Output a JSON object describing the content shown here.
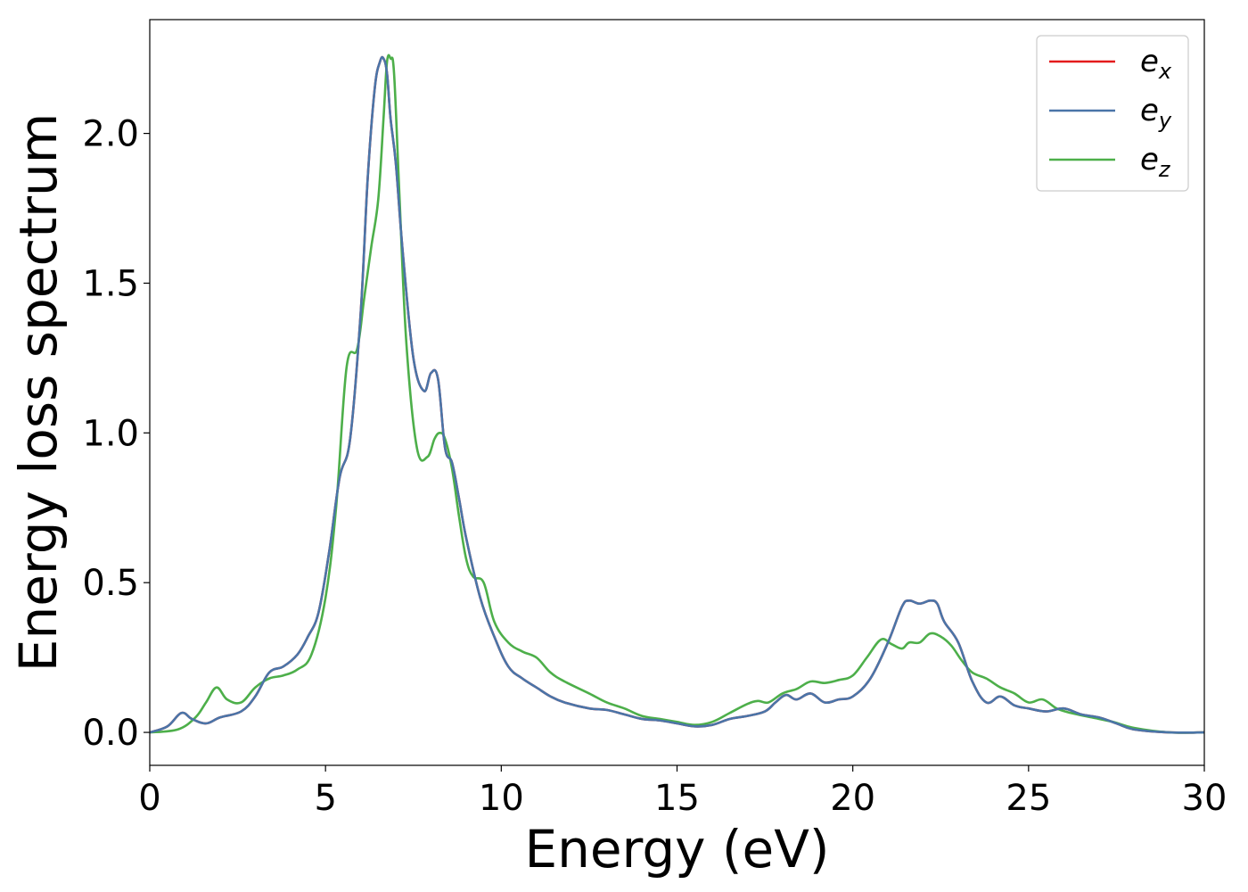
{
  "chart_data": {
    "type": "line",
    "title": "",
    "xlabel": "Energy (eV)",
    "ylabel": "Energy loss spectrum",
    "xlim": [
      0,
      30
    ],
    "ylim": [
      -0.11,
      2.38
    ],
    "xticks": [
      0,
      5,
      10,
      15,
      20,
      25,
      30
    ],
    "xtick_labels": [
      "0",
      "5",
      "10",
      "15",
      "20",
      "25",
      "30"
    ],
    "yticks": [
      0.0,
      0.5,
      1.0,
      1.5,
      2.0
    ],
    "ytick_labels": [
      "0.0",
      "0.5",
      "1.0",
      "1.5",
      "2.0"
    ],
    "grid": false,
    "legend_position": "top-right",
    "series": [
      {
        "name": "e_x",
        "legend_base": "e",
        "legend_sub": "x",
        "color": "#e41a1c",
        "x": [
          0,
          0.5,
          0.9,
          1.2,
          1.6,
          2.0,
          2.6,
          3.0,
          3.4,
          3.8,
          4.2,
          4.5,
          4.8,
          5.1,
          5.4,
          5.7,
          6.0,
          6.2,
          6.4,
          6.55,
          6.65,
          6.75,
          6.85,
          7.0,
          7.2,
          7.5,
          7.8,
          8.0,
          8.2,
          8.4,
          8.6,
          8.8,
          9.0,
          9.4,
          9.8,
          10.2,
          10.6,
          11.0,
          11.4,
          11.8,
          12.5,
          13.0,
          13.5,
          14.0,
          14.5,
          15.0,
          15.5,
          16.0,
          16.5,
          17.0,
          17.5,
          17.8,
          18.1,
          18.4,
          18.8,
          19.2,
          19.6,
          20.0,
          20.5,
          21.0,
          21.4,
          21.6,
          21.9,
          22.2,
          22.4,
          22.6,
          23.0,
          23.4,
          23.8,
          24.2,
          24.6,
          25.0,
          25.5,
          26.0,
          26.5,
          27.0,
          27.5,
          28.0,
          29.0,
          30.0
        ],
        "y": [
          0.0,
          0.02,
          0.065,
          0.045,
          0.03,
          0.05,
          0.07,
          0.12,
          0.2,
          0.22,
          0.26,
          0.32,
          0.4,
          0.6,
          0.85,
          0.98,
          1.4,
          1.85,
          2.15,
          2.24,
          2.25,
          2.2,
          2.05,
          1.9,
          1.6,
          1.25,
          1.14,
          1.2,
          1.18,
          0.95,
          0.9,
          0.78,
          0.65,
          0.45,
          0.32,
          0.22,
          0.18,
          0.15,
          0.12,
          0.1,
          0.08,
          0.075,
          0.06,
          0.045,
          0.04,
          0.03,
          0.02,
          0.025,
          0.045,
          0.055,
          0.07,
          0.1,
          0.125,
          0.11,
          0.13,
          0.1,
          0.11,
          0.12,
          0.18,
          0.3,
          0.42,
          0.44,
          0.43,
          0.44,
          0.43,
          0.37,
          0.3,
          0.17,
          0.1,
          0.12,
          0.09,
          0.08,
          0.07,
          0.08,
          0.06,
          0.05,
          0.03,
          0.01,
          0.0,
          0.0
        ]
      },
      {
        "name": "e_y",
        "legend_base": "e",
        "legend_sub": "y",
        "color": "#4a75a8",
        "x": [
          0,
          0.5,
          0.9,
          1.2,
          1.6,
          2.0,
          2.6,
          3.0,
          3.4,
          3.8,
          4.2,
          4.5,
          4.8,
          5.1,
          5.4,
          5.7,
          6.0,
          6.2,
          6.4,
          6.55,
          6.65,
          6.75,
          6.85,
          7.0,
          7.2,
          7.5,
          7.8,
          8.0,
          8.2,
          8.4,
          8.6,
          8.8,
          9.0,
          9.4,
          9.8,
          10.2,
          10.6,
          11.0,
          11.4,
          11.8,
          12.5,
          13.0,
          13.5,
          14.0,
          14.5,
          15.0,
          15.5,
          16.0,
          16.5,
          17.0,
          17.5,
          17.8,
          18.1,
          18.4,
          18.8,
          19.2,
          19.6,
          20.0,
          20.5,
          21.0,
          21.4,
          21.6,
          21.9,
          22.2,
          22.4,
          22.6,
          23.0,
          23.4,
          23.8,
          24.2,
          24.6,
          25.0,
          25.5,
          26.0,
          26.5,
          27.0,
          27.5,
          28.0,
          29.0,
          30.0
        ],
        "y": [
          0.0,
          0.02,
          0.065,
          0.045,
          0.03,
          0.05,
          0.07,
          0.12,
          0.2,
          0.22,
          0.26,
          0.32,
          0.4,
          0.6,
          0.85,
          0.98,
          1.4,
          1.85,
          2.15,
          2.24,
          2.25,
          2.2,
          2.05,
          1.9,
          1.6,
          1.25,
          1.14,
          1.2,
          1.18,
          0.95,
          0.9,
          0.78,
          0.65,
          0.45,
          0.32,
          0.22,
          0.18,
          0.15,
          0.12,
          0.1,
          0.08,
          0.075,
          0.06,
          0.045,
          0.04,
          0.03,
          0.02,
          0.025,
          0.045,
          0.055,
          0.07,
          0.1,
          0.125,
          0.11,
          0.13,
          0.1,
          0.11,
          0.12,
          0.18,
          0.3,
          0.42,
          0.44,
          0.43,
          0.44,
          0.43,
          0.37,
          0.3,
          0.17,
          0.1,
          0.12,
          0.09,
          0.08,
          0.07,
          0.08,
          0.06,
          0.05,
          0.03,
          0.01,
          0.0,
          0.0
        ]
      },
      {
        "name": "e_z",
        "legend_base": "e",
        "legend_sub": "z",
        "color": "#4daf4a",
        "x": [
          0,
          0.8,
          1.3,
          1.6,
          1.9,
          2.2,
          2.6,
          3.0,
          3.4,
          3.8,
          4.2,
          4.6,
          5.0,
          5.3,
          5.6,
          5.9,
          6.1,
          6.3,
          6.5,
          6.65,
          6.75,
          6.85,
          6.95,
          7.1,
          7.3,
          7.6,
          7.9,
          8.1,
          8.25,
          8.4,
          8.6,
          8.8,
          9.0,
          9.2,
          9.5,
          9.8,
          10.2,
          10.6,
          11.0,
          11.4,
          11.8,
          12.5,
          13.0,
          13.5,
          14.0,
          14.5,
          15.0,
          15.5,
          16.0,
          16.5,
          17.0,
          17.3,
          17.6,
          18.0,
          18.4,
          18.8,
          19.2,
          19.6,
          20.0,
          20.4,
          20.8,
          21.1,
          21.4,
          21.6,
          21.9,
          22.2,
          22.5,
          22.8,
          23.1,
          23.4,
          23.8,
          24.2,
          24.6,
          25.0,
          25.4,
          25.8,
          26.2,
          26.8,
          27.4,
          28.0,
          29.0,
          30.0
        ],
        "y": [
          0.0,
          0.01,
          0.05,
          0.1,
          0.15,
          0.11,
          0.1,
          0.15,
          0.18,
          0.19,
          0.21,
          0.26,
          0.45,
          0.75,
          1.22,
          1.28,
          1.45,
          1.62,
          1.78,
          2.05,
          2.24,
          2.25,
          2.2,
          1.8,
          1.3,
          0.95,
          0.92,
          0.98,
          1.0,
          0.98,
          0.88,
          0.72,
          0.58,
          0.52,
          0.5,
          0.37,
          0.3,
          0.27,
          0.25,
          0.2,
          0.17,
          0.13,
          0.1,
          0.08,
          0.055,
          0.045,
          0.035,
          0.025,
          0.035,
          0.065,
          0.095,
          0.105,
          0.1,
          0.13,
          0.145,
          0.17,
          0.165,
          0.175,
          0.19,
          0.25,
          0.31,
          0.295,
          0.28,
          0.3,
          0.3,
          0.33,
          0.32,
          0.29,
          0.24,
          0.2,
          0.18,
          0.15,
          0.13,
          0.1,
          0.11,
          0.08,
          0.065,
          0.05,
          0.035,
          0.015,
          0.0,
          0.0
        ]
      }
    ]
  }
}
